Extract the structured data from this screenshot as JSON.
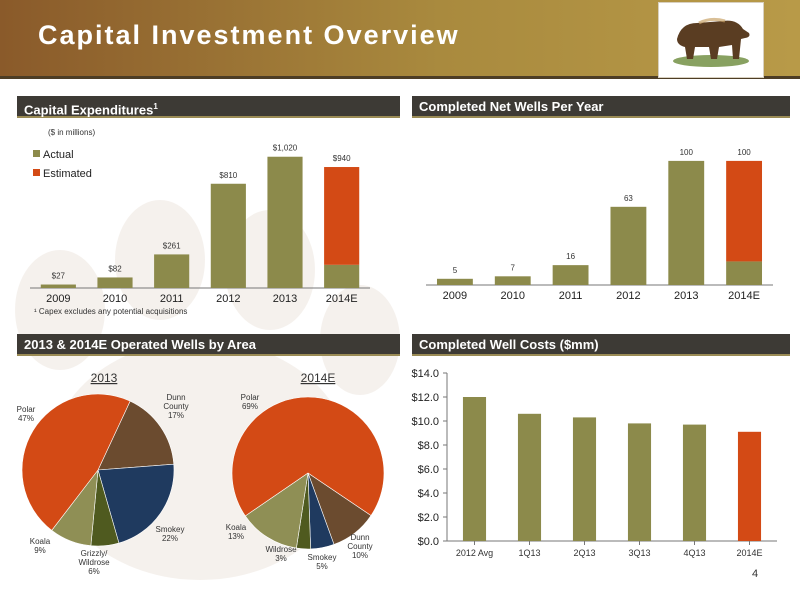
{
  "header": {
    "title": "Capital Investment Overview"
  },
  "page_number": "4",
  "colors": {
    "actual": "#8c8a4b",
    "estimated": "#d34a15",
    "dunn_county": "#6b4b2f",
    "smokey": "#1f3a5f",
    "grizzly_wildrose": "#4f5a1f",
    "koala": "#8f8f55",
    "polar": "#d34a15",
    "well_costs": "#8c8a4b"
  },
  "panels": {
    "capex": {
      "title": "Capital Expenditures",
      "title_sup": "1",
      "units_note": "($ in millions)",
      "footnote": "¹ Capex excludes any potential acquisitions"
    },
    "wells": {
      "title": "Completed Net Wells Per Year"
    },
    "areas": {
      "title": "2013 & 2014E Operated Wells by Area"
    },
    "costs": {
      "title": "Completed Well Costs ($mm)"
    }
  },
  "chart_data": [
    {
      "type": "bar",
      "title": "Capital Expenditures",
      "categories": [
        "2009",
        "2010",
        "2011",
        "2012",
        "2013",
        "2014E"
      ],
      "legend": [
        "Actual",
        "Estimated"
      ],
      "legend_position": "top-left",
      "data_labels": [
        "$27",
        "$82",
        "$261",
        "$810",
        "$1,020",
        "$940"
      ],
      "series": [
        {
          "name": "Actual",
          "values": [
            27,
            82,
            261,
            810,
            1020,
            180
          ]
        },
        {
          "name": "Estimated",
          "values": [
            0,
            0,
            0,
            0,
            0,
            760
          ]
        }
      ],
      "ylim": [
        0,
        1150
      ]
    },
    {
      "type": "bar",
      "title": "Completed Net Wells Per Year",
      "categories": [
        "2009",
        "2010",
        "2011",
        "2012",
        "2013",
        "2014E"
      ],
      "data_labels": [
        "5",
        "7",
        "16",
        "63",
        "100",
        "100"
      ],
      "series": [
        {
          "values": [
            5,
            7,
            16,
            63,
            100,
            19
          ]
        },
        {
          "values": [
            0,
            0,
            0,
            0,
            0,
            81
          ]
        }
      ],
      "ylim": [
        0,
        112
      ]
    },
    {
      "type": "pie",
      "title": "2013",
      "slices": [
        {
          "label": "Dunn\nCounty\n17%",
          "value": 17,
          "color_key": "dunn_county"
        },
        {
          "label": "Smokey\n22%",
          "value": 22,
          "color_key": "smokey"
        },
        {
          "label": "Grizzly/\nWildrose\n6%",
          "value": 6,
          "color_key": "grizzly_wildrose"
        },
        {
          "label": "Koala\n9%",
          "value": 9,
          "color_key": "koala"
        },
        {
          "label": "Polar\n47%",
          "value": 47,
          "color_key": "polar"
        }
      ]
    },
    {
      "type": "pie",
      "title": "2014E",
      "slices": [
        {
          "label": "Dunn\nCounty\n10%",
          "value": 10,
          "color_key": "dunn_county"
        },
        {
          "label": "Smokey\n5%",
          "value": 5,
          "color_key": "smokey"
        },
        {
          "label": "Wildrose\n3%",
          "value": 3,
          "color_key": "grizzly_wildrose"
        },
        {
          "label": "Koala\n13%",
          "value": 13,
          "color_key": "koala"
        },
        {
          "label": "Polar\n69%",
          "value": 69,
          "color_key": "polar"
        }
      ]
    },
    {
      "type": "bar",
      "title": "Completed Well Costs ($mm)",
      "categories": [
        "2012 Avg",
        "1Q13",
        "2Q13",
        "3Q13",
        "4Q13",
        "2014E"
      ],
      "values": [
        12.0,
        10.6,
        10.3,
        9.8,
        9.7,
        9.1
      ],
      "highlight_last": true,
      "yticks": [
        "$0.0",
        "$2.0",
        "$4.0",
        "$6.0",
        "$8.0",
        "$10.0",
        "$12.0",
        "$14.0"
      ],
      "ylim": [
        0,
        14
      ],
      "grid": false
    }
  ]
}
